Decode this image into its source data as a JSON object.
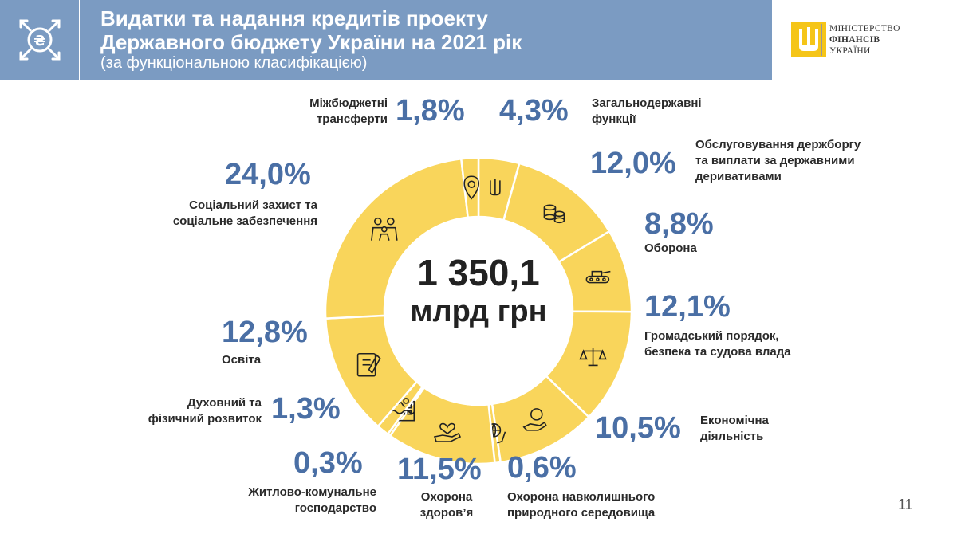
{
  "header": {
    "title_line1": "Видатки та надання кредитів проекту",
    "title_line2": "Державного бюджету України на 2021 рік",
    "subtitle": "(за функціональною класифікацією)",
    "ministry_line1": "МІНІСТЕРСТВО",
    "ministry_line2": "ФІНАНСІВ",
    "ministry_line3": "УКРАЇНИ"
  },
  "center": {
    "amount": "1 350,1",
    "unit": "млрд грн"
  },
  "page_number": "11",
  "colors": {
    "header_bg": "#7b9bc2",
    "donut": "#f9d55b",
    "percent_text": "#4a6fa5"
  },
  "chart_data": {
    "type": "pie",
    "title": "Видатки та надання кредитів проекту Державного бюджету України на 2021 рік",
    "subtitle": "(за функціональною класифікацією)",
    "unit": "%",
    "slices": [
      {
        "label": "Загальнодержавні функції",
        "value": 4.3,
        "display": "4,3%",
        "icon": "trident-icon"
      },
      {
        "label": "Обслуговування держборгу та виплати за державними деривативами",
        "value": 12.0,
        "display": "12,0%",
        "icon": "coins-icon"
      },
      {
        "label": "Оборона",
        "value": 8.8,
        "display": "8,8%",
        "icon": "tank-icon"
      },
      {
        "label": "Громадський порядок, безпека та судова влада",
        "value": 12.1,
        "display": "12,1%",
        "icon": "scales-icon"
      },
      {
        "label": "Економічна діяльність",
        "value": 10.5,
        "display": "10,5%",
        "icon": "hand-coin-icon"
      },
      {
        "label": "Охорона навколишнього природного середовища",
        "value": 0.6,
        "display": "0,6%",
        "icon": "globe-hands-icon"
      },
      {
        "label": "Охорона здоров’я",
        "value": 11.5,
        "display": "11,5%",
        "icon": "heart-hand-icon"
      },
      {
        "label": "Житлово-комунальне господарство",
        "value": 0.3,
        "display": "0,3%",
        "icon": "building-icon"
      },
      {
        "label": "Духовний та фізичний розвиток",
        "value": 1.3,
        "display": "1,3%",
        "icon": "swimmer-icon"
      },
      {
        "label": "Освіта",
        "value": 12.8,
        "display": "12,8%",
        "icon": "book-icon"
      },
      {
        "label": "Соціальний захист та соціальне забезпечення",
        "value": 24.0,
        "display": "24,0%",
        "icon": "family-icon"
      },
      {
        "label": "Міжбюджетні трансферти",
        "value": 1.8,
        "display": "1,8%",
        "icon": "location-pin-icon"
      }
    ]
  },
  "labels": {
    "zag_l1": "Загальнодержавні",
    "zag_l2": "функції",
    "borg_l1": "Обслуговування держборгу",
    "borg_l2": "та виплати за державними",
    "borg_l3": "деривативами",
    "obor_l1": "Оборона",
    "poryad_l1": "Громадський порядок,",
    "poryad_l2": "безпека та судова влада",
    "econ_l1": "Економічна",
    "econ_l2": "діяльність",
    "env_l1": "Охорона навколишнього",
    "env_l2": "природного середовища",
    "health_l1": "Охорона",
    "health_l2": "здоров’я",
    "house_l1": "Житлово-комунальне",
    "house_l2": "господарство",
    "sport_l1": "Духовний та",
    "sport_l2": "фізичний розвиток",
    "edu_l1": "Освіта",
    "soc_l1": "Соціальний захист та",
    "soc_l2": "соціальне забезпечення",
    "mbt_l1": "Міжбюджетні",
    "mbt_l2": "трансферти"
  }
}
